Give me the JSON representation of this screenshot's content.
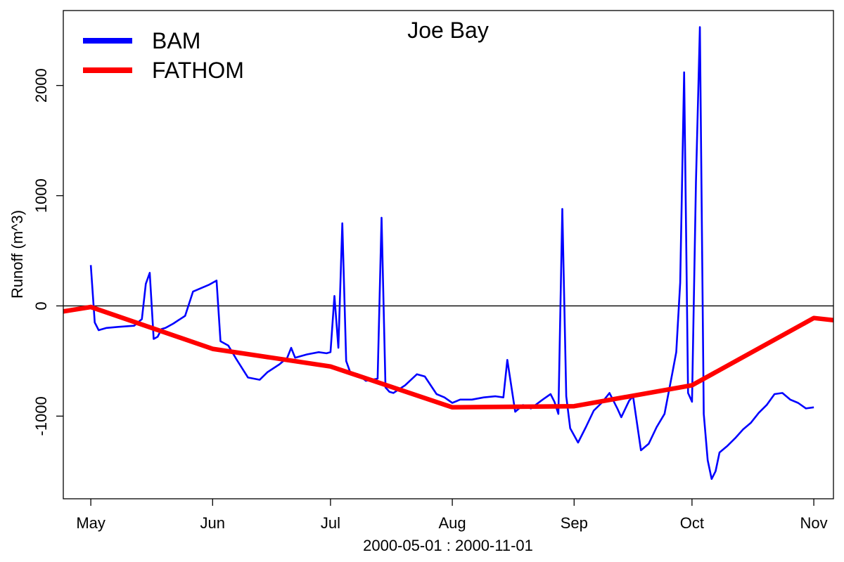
{
  "chart_data": {
    "type": "line",
    "title": "Joe Bay",
    "xlabel": "2000-05-01 : 2000-11-01",
    "ylabel": "Runoff (m^3)",
    "xlim": [
      "2000-04-24",
      "2000-11-06"
    ],
    "ylim": [
      -1750,
      2680
    ],
    "x_ticks": [
      {
        "date": "2000-05-01",
        "label": "May"
      },
      {
        "date": "2000-06-01",
        "label": "Jun"
      },
      {
        "date": "2000-07-01",
        "label": "Jul"
      },
      {
        "date": "2000-08-01",
        "label": "Aug"
      },
      {
        "date": "2000-09-01",
        "label": "Sep"
      },
      {
        "date": "2000-10-01",
        "label": "Oct"
      },
      {
        "date": "2000-11-01",
        "label": "Nov"
      }
    ],
    "y_ticks": [
      -1000,
      0,
      1000,
      2000
    ],
    "y_tick_labels": [
      "-1000",
      "0",
      "1000",
      "2000"
    ],
    "reference_line_y": 0,
    "legend_position": "top-left",
    "series": [
      {
        "name": "BAM",
        "color": "#0000ff",
        "x": [
          "2000-05-01",
          "2000-05-02",
          "2000-05-03",
          "2000-05-05",
          "2000-05-08",
          "2000-05-12",
          "2000-05-14",
          "2000-05-15",
          "2000-05-16",
          "2000-05-17",
          "2000-05-18",
          "2000-05-19",
          "2000-05-20",
          "2000-05-22",
          "2000-05-25",
          "2000-05-27",
          "2000-05-29",
          "2000-05-31",
          "2000-06-02",
          "2000-06-03",
          "2000-06-05",
          "2000-06-07",
          "2000-06-10",
          "2000-06-13",
          "2000-06-15",
          "2000-06-18",
          "2000-06-20",
          "2000-06-21",
          "2000-06-22",
          "2000-06-25",
          "2000-06-28",
          "2000-06-30",
          "2000-07-01",
          "2000-07-02",
          "2000-07-03",
          "2000-07-04",
          "2000-07-05",
          "2000-07-06",
          "2000-07-08",
          "2000-07-10",
          "2000-07-13",
          "2000-07-14",
          "2000-07-15",
          "2000-07-16",
          "2000-07-17",
          "2000-07-20",
          "2000-07-23",
          "2000-07-25",
          "2000-07-28",
          "2000-07-30",
          "2000-08-01",
          "2000-08-03",
          "2000-08-06",
          "2000-08-09",
          "2000-08-12",
          "2000-08-14",
          "2000-08-15",
          "2000-08-17",
          "2000-08-19",
          "2000-08-21",
          "2000-08-24",
          "2000-08-26",
          "2000-08-27",
          "2000-08-28",
          "2000-08-29",
          "2000-08-30",
          "2000-08-31",
          "2000-09-02",
          "2000-09-04",
          "2000-09-06",
          "2000-09-08",
          "2000-09-10",
          "2000-09-12",
          "2000-09-13",
          "2000-09-15",
          "2000-09-16",
          "2000-09-18",
          "2000-09-20",
          "2000-09-22",
          "2000-09-24",
          "2000-09-26",
          "2000-09-27",
          "2000-09-28",
          "2000-09-29",
          "2000-09-30",
          "2000-10-01",
          "2000-10-02",
          "2000-10-03",
          "2000-10-04",
          "2000-10-05",
          "2000-10-06",
          "2000-10-07",
          "2000-10-08",
          "2000-10-10",
          "2000-10-12",
          "2000-10-14",
          "2000-10-16",
          "2000-10-18",
          "2000-10-20",
          "2000-10-22",
          "2000-10-24",
          "2000-10-26",
          "2000-10-28",
          "2000-10-30",
          "2000-11-01"
        ],
        "y": [
          370,
          -150,
          -220,
          -200,
          -190,
          -180,
          -120,
          200,
          300,
          -300,
          -280,
          -210,
          -200,
          -160,
          -90,
          130,
          160,
          190,
          230,
          -320,
          -360,
          -480,
          -650,
          -670,
          -600,
          -530,
          -470,
          -380,
          -470,
          -440,
          -420,
          -430,
          -420,
          90,
          -380,
          750,
          -500,
          -600,
          -620,
          -680,
          -660,
          800,
          -740,
          -780,
          -790,
          -720,
          -620,
          -640,
          -800,
          -830,
          -880,
          -850,
          -850,
          -830,
          -820,
          -830,
          -490,
          -960,
          -900,
          -930,
          -850,
          -800,
          -870,
          -980,
          880,
          -820,
          -1110,
          -1240,
          -1100,
          -950,
          -880,
          -790,
          -930,
          -1010,
          -860,
          -820,
          -1310,
          -1250,
          -1100,
          -980,
          -610,
          -420,
          210,
          2120,
          -790,
          -870,
          1120,
          2530,
          -980,
          -1400,
          -1570,
          -1500,
          -1330,
          -1270,
          -1200,
          -1120,
          -1060,
          -970,
          -900,
          -800,
          -790,
          -850,
          -880,
          -930,
          -920
        ]
      },
      {
        "name": "FATHOM",
        "color": "#ff0000",
        "x": [
          "2000-04-24",
          "2000-05-01",
          "2000-06-01",
          "2000-07-01",
          "2000-08-01",
          "2000-09-01",
          "2000-10-01",
          "2000-11-01",
          "2000-11-06"
        ],
        "y": [
          -50,
          -10,
          -390,
          -550,
          -920,
          -910,
          -720,
          -110,
          -130
        ]
      }
    ]
  }
}
